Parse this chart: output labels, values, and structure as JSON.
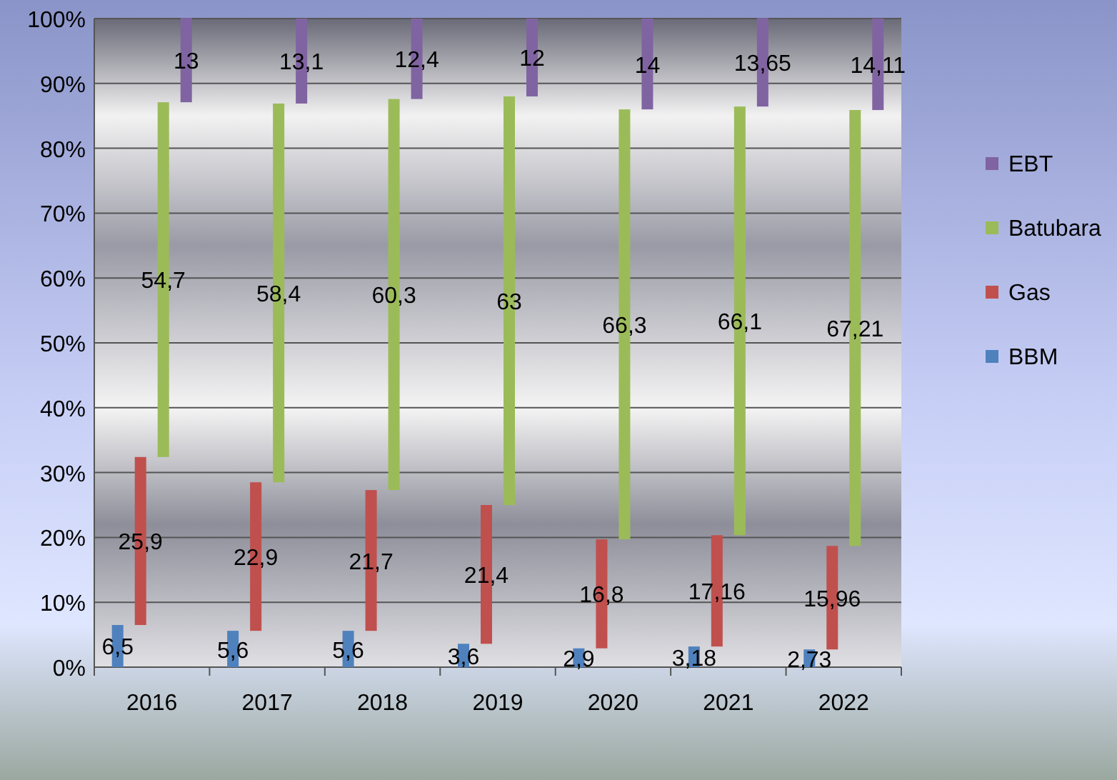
{
  "chart_data": {
    "type": "bar",
    "stacked": true,
    "categories": [
      "2016",
      "2017",
      "2018",
      "2019",
      "2020",
      "2021",
      "2022"
    ],
    "series": [
      {
        "name": "BBM",
        "color": "#4f81bd",
        "values": [
          6.5,
          5.6,
          5.6,
          3.6,
          2.9,
          3.18,
          2.73
        ],
        "value_labels": [
          "6,5",
          "5,6",
          "5,6",
          "3,6",
          "2,9",
          "3,18",
          "2,73"
        ]
      },
      {
        "name": "Gas",
        "color": "#c0504d",
        "values": [
          25.9,
          22.9,
          21.7,
          21.4,
          16.8,
          17.16,
          15.96
        ],
        "value_labels": [
          "25,9",
          "22,9",
          "21,7",
          "21,4",
          "16,8",
          "17,16",
          "15,96"
        ]
      },
      {
        "name": "Batubara",
        "color": "#9bbb59",
        "values": [
          54.7,
          58.4,
          60.3,
          63,
          66.3,
          66.1,
          67.21
        ],
        "value_labels": [
          "54,7",
          "58,4",
          "60,3",
          "63",
          "66,3",
          "66,1",
          "67,21"
        ]
      },
      {
        "name": "EBT",
        "color": "#8064a2",
        "values": [
          13,
          13.1,
          12.4,
          12,
          14,
          13.65,
          14.11
        ],
        "value_labels": [
          "13",
          "13,1",
          "12,4",
          "12",
          "14",
          "13,65",
          "14,11"
        ]
      }
    ],
    "ylim": [
      0,
      100
    ],
    "yticks": [
      {
        "value": 0,
        "label": "0%"
      },
      {
        "value": 10,
        "label": "10%"
      },
      {
        "value": 20,
        "label": "20%"
      },
      {
        "value": 30,
        "label": "30%"
      },
      {
        "value": 40,
        "label": "40%"
      },
      {
        "value": 50,
        "label": "50%"
      },
      {
        "value": 60,
        "label": "60%"
      },
      {
        "value": 70,
        "label": "70%"
      },
      {
        "value": 80,
        "label": "80%"
      },
      {
        "value": 90,
        "label": "90%"
      },
      {
        "value": 100,
        "label": "100%"
      }
    ],
    "grid": "y",
    "legend": "right"
  }
}
